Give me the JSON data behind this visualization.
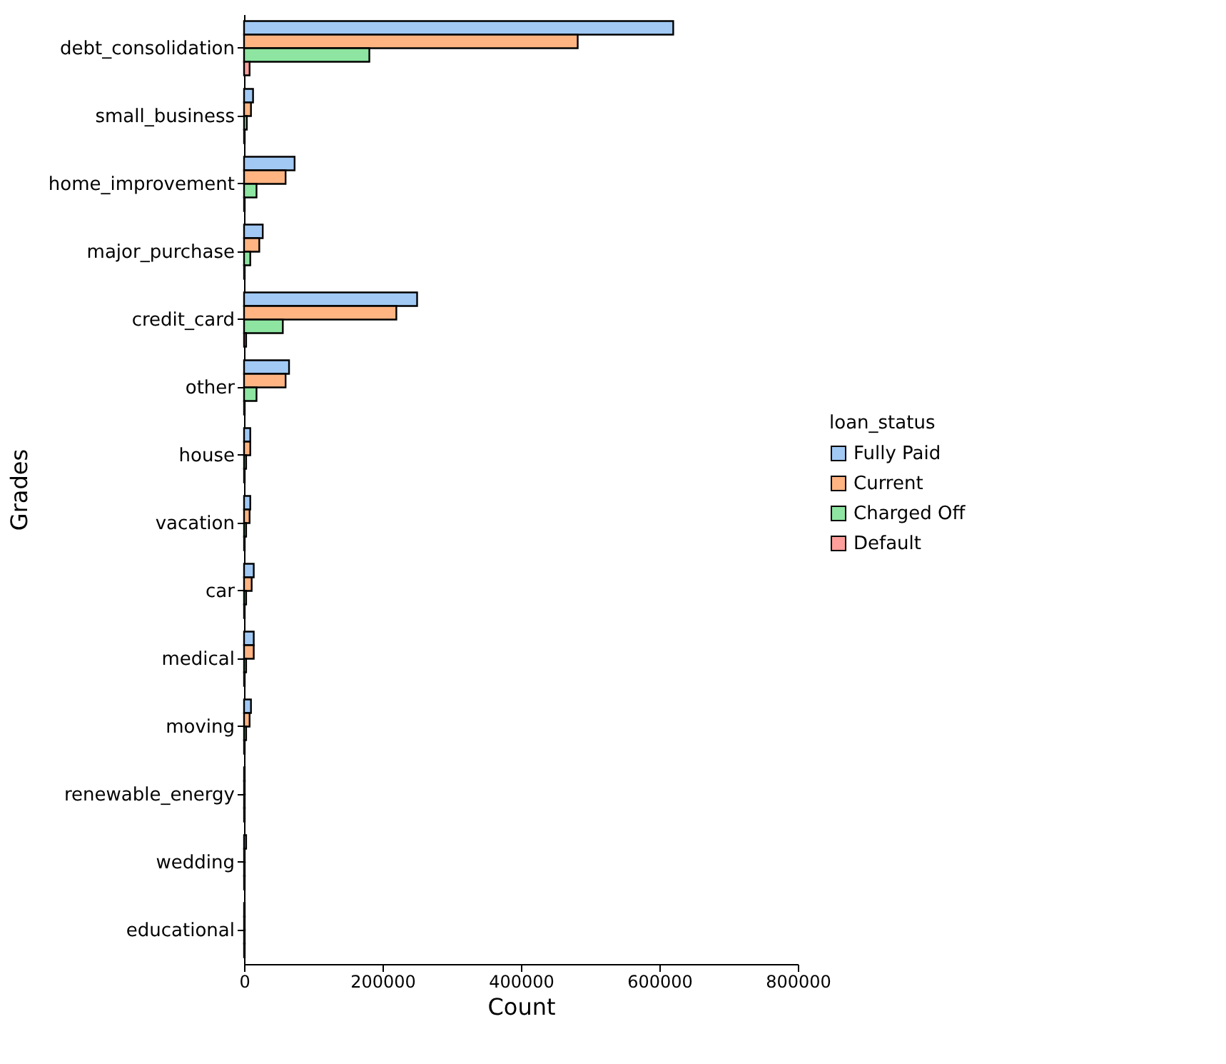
{
  "chart_data": {
    "type": "bar",
    "orientation": "horizontal",
    "xlabel": "Count",
    "ylabel": "Grades",
    "legend_title": "loan_status",
    "legend": "right",
    "grid": false,
    "categories": [
      "debt_consolidation",
      "small_business",
      "home_improvement",
      "major_purchase",
      "credit_card",
      "other",
      "house",
      "vacation",
      "car",
      "medical",
      "moving",
      "renewable_energy",
      "wedding",
      "educational"
    ],
    "xlim": [
      0,
      800000
    ],
    "xticks": [
      0,
      200000,
      400000,
      600000,
      800000
    ],
    "series": [
      {
        "name": "Fully Paid",
        "color": "#a1c9f4",
        "values": [
          620000,
          13000,
          73000,
          27000,
          250000,
          65000,
          9000,
          9000,
          14000,
          14000,
          10000,
          1000,
          3000,
          1000
        ]
      },
      {
        "name": "Current",
        "color": "#ffb482",
        "values": [
          482000,
          10000,
          60000,
          22000,
          220000,
          60000,
          9000,
          8000,
          11000,
          14000,
          8000,
          1000,
          1000,
          1000
        ]
      },
      {
        "name": "Charged Off",
        "color": "#8de5a1",
        "values": [
          181000,
          4000,
          18000,
          9000,
          56000,
          18000,
          3000,
          3000,
          3000,
          3000,
          3000,
          1000,
          1000,
          1000
        ]
      },
      {
        "name": "Default",
        "color": "#ff9f9b",
        "values": [
          8000,
          1000,
          1000,
          1000,
          3000,
          1000,
          1000,
          1000,
          1000,
          1000,
          1000,
          1000,
          1000,
          1000
        ]
      }
    ]
  }
}
